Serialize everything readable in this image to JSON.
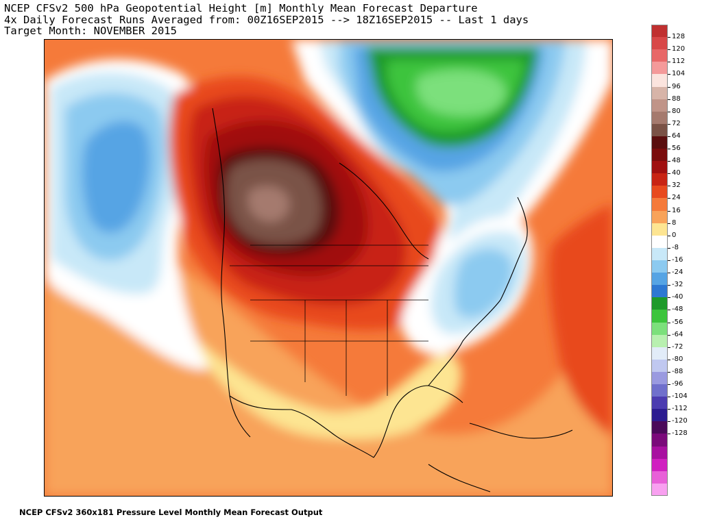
{
  "title": {
    "line1": "NCEP CFSv2 500 hPa Geopotential Height [m] Monthly Mean Forecast Departure",
    "line2": "4x Daily Forecast Runs Averaged from: 00Z16SEP2015 --> 18Z16SEP2015 -- Last 1 days",
    "line3": "Target Month: NOVEMBER 2015"
  },
  "footer": "NCEP CFSv2 360x181 Pressure Level Monthly Mean Forecast Output",
  "legend": {
    "levels": [
      {
        "label": "128",
        "color": "#c03030"
      },
      {
        "label": "120",
        "color": "#d84848"
      },
      {
        "label": "112",
        "color": "#e86868"
      },
      {
        "label": "104",
        "color": "#f49a9a"
      },
      {
        "label": "96",
        "color": "#fbe4de"
      },
      {
        "label": "88",
        "color": "#d7b4a8"
      },
      {
        "label": "80",
        "color": "#c09488"
      },
      {
        "label": "72",
        "color": "#a57a6e"
      },
      {
        "label": "64",
        "color": "#7a5246"
      },
      {
        "label": "56",
        "color": "#5a0e0e"
      },
      {
        "label": "48",
        "color": "#7a0c0c"
      },
      {
        "label": "40",
        "color": "#a01010"
      },
      {
        "label": "32",
        "color": "#c82414"
      },
      {
        "label": "24",
        "color": "#e84a1e"
      },
      {
        "label": "16",
        "color": "#f57a3a"
      },
      {
        "label": "8",
        "color": "#f8a35a"
      },
      {
        "label": "0",
        "color": "#fde592"
      },
      {
        "label": "-8",
        "color": "#ffffff"
      },
      {
        "label": "-16",
        "color": "#c8e8f8"
      },
      {
        "label": "-24",
        "color": "#8ccaf0"
      },
      {
        "label": "-32",
        "color": "#56a4e4"
      },
      {
        "label": "-40",
        "color": "#2e78d2"
      },
      {
        "label": "-48",
        "color": "#1e9a2a"
      },
      {
        "label": "-56",
        "color": "#3cc43c"
      },
      {
        "label": "-64",
        "color": "#7ce07c"
      },
      {
        "label": "-72",
        "color": "#b8f0b0"
      },
      {
        "label": "-80",
        "color": "#e2ecf8"
      },
      {
        "label": "-88",
        "color": "#c0c8f0"
      },
      {
        "label": "-96",
        "color": "#9a9ae0"
      },
      {
        "label": "-104",
        "color": "#7070cc"
      },
      {
        "label": "-112",
        "color": "#4c3cb0"
      },
      {
        "label": "-120",
        "color": "#2c1c90"
      },
      {
        "label": "-128",
        "color": "#4a0a5a"
      },
      {
        "label": "",
        "color": "#7a0a7a"
      },
      {
        "label": "",
        "color": "#a810a0"
      },
      {
        "label": "",
        "color": "#d020c0"
      },
      {
        "label": "",
        "color": "#e860d8"
      },
      {
        "label": "",
        "color": "#f8a0f0"
      }
    ]
  }
}
